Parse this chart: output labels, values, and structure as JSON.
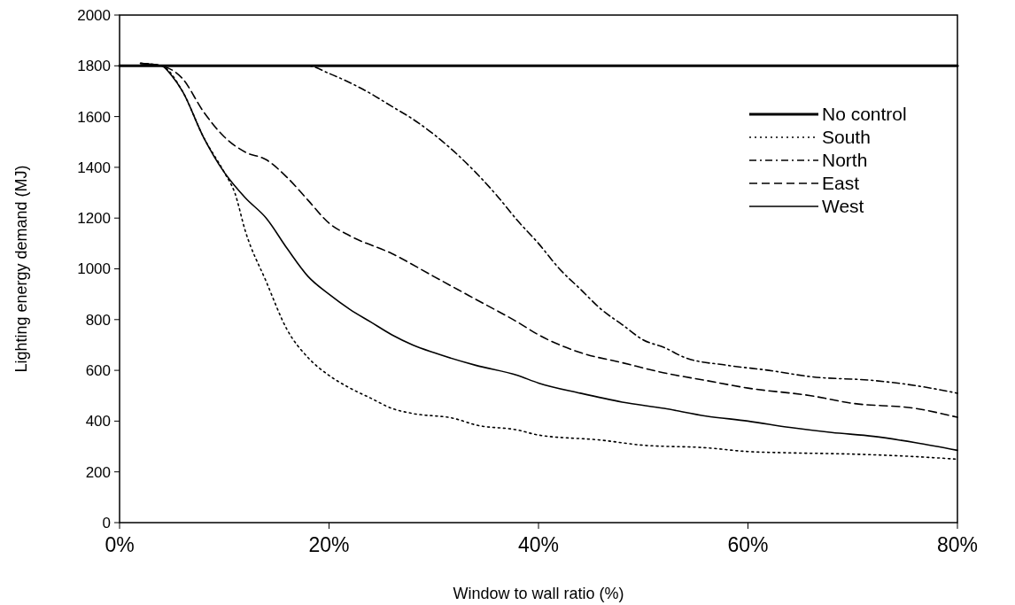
{
  "chart_data": {
    "type": "line",
    "xlabel": "Window to wall ratio (%)",
    "ylabel": "Lighting energy demand (MJ)",
    "xlim": [
      0,
      80
    ],
    "xticks": [
      {
        "value": 0,
        "label": "0%"
      },
      {
        "value": 20,
        "label": "20%"
      },
      {
        "value": 40,
        "label": "40%"
      },
      {
        "value": 60,
        "label": "60%"
      },
      {
        "value": 80,
        "label": "80%"
      }
    ],
    "ylim": [
      0,
      2000
    ],
    "yticks": [
      0,
      200,
      400,
      600,
      800,
      1000,
      1200,
      1400,
      1600,
      1800,
      2000
    ],
    "grid": false,
    "legend": "top right",
    "marker": "none",
    "series": [
      {
        "name": "No control",
        "color": "#000000",
        "line_style": "solid",
        "x": [
          0,
          80
        ],
        "values": [
          1800,
          1800
        ]
      },
      {
        "name": "South",
        "color": "#000000",
        "line_style": "dotted",
        "x": [
          2,
          4,
          6,
          8,
          10,
          11,
          12,
          14,
          16,
          18,
          20,
          22,
          24,
          26,
          28,
          32,
          34,
          38,
          40,
          46,
          50,
          56,
          60,
          64,
          70,
          76,
          80
        ],
        "values": [
          1810,
          1800,
          1700,
          1520,
          1380,
          1300,
          1150,
          950,
          760,
          650,
          580,
          530,
          490,
          450,
          430,
          410,
          385,
          365,
          345,
          325,
          305,
          295,
          280,
          275,
          270,
          260,
          250
        ]
      },
      {
        "name": "North",
        "color": "#000000",
        "line_style": "dashdot",
        "x": [
          2,
          4,
          18,
          20,
          24,
          26,
          28,
          30,
          32,
          34,
          36,
          38,
          40,
          42,
          44,
          46,
          48,
          50,
          52,
          54,
          58,
          62,
          66,
          72,
          76,
          80
        ],
        "values": [
          1810,
          1800,
          1800,
          1770,
          1690,
          1640,
          1590,
          1530,
          1460,
          1380,
          1290,
          1190,
          1100,
          1000,
          920,
          840,
          780,
          720,
          690,
          650,
          620,
          600,
          575,
          560,
          540,
          510
        ]
      },
      {
        "name": "East",
        "color": "#000000",
        "line_style": "dashed",
        "x": [
          2,
          4,
          6,
          8,
          10,
          12,
          14,
          16,
          18,
          20,
          22,
          26,
          30,
          34,
          38,
          40,
          44,
          48,
          52,
          56,
          60,
          66,
          70,
          76,
          80
        ],
        "values": [
          1810,
          1800,
          1750,
          1620,
          1520,
          1460,
          1430,
          1360,
          1270,
          1180,
          1130,
          1060,
          970,
          880,
          790,
          740,
          670,
          630,
          590,
          560,
          530,
          500,
          470,
          450,
          415
        ]
      },
      {
        "name": "West",
        "color": "#000000",
        "line_style": "solid",
        "x": [
          2,
          4,
          5,
          6,
          8,
          10,
          12,
          14,
          16,
          18,
          20,
          22,
          24,
          26,
          28,
          30,
          34,
          38,
          40,
          44,
          48,
          52,
          56,
          60,
          64,
          68,
          72,
          76,
          80
        ],
        "values": [
          1810,
          1800,
          1760,
          1700,
          1520,
          1380,
          1280,
          1200,
          1080,
          970,
          900,
          840,
          790,
          740,
          700,
          670,
          620,
          580,
          550,
          510,
          475,
          450,
          420,
          400,
          375,
          355,
          340,
          315,
          285
        ]
      }
    ]
  }
}
